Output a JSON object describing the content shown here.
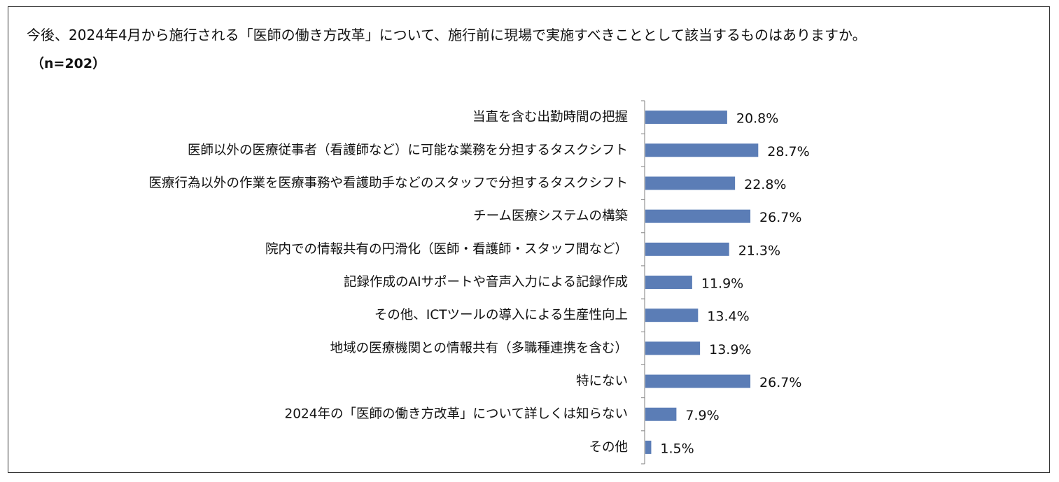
{
  "title": "今後、2024年4月から施行される「医師の働き方改革」について、施行前に現場で実施すべきこととして該当するものはありますか。",
  "subtitle": "（n=202）",
  "colors": {
    "bar": "#5B7DB6",
    "axis": "#7f7f7f",
    "border": "#333333"
  },
  "chart_data": {
    "type": "bar",
    "orientation": "horizontal",
    "categories": [
      "当直を含む出勤時間の把握",
      "医師以外の医療従事者（看護師など）に可能な業務を分担するタスクシフト",
      "医療行為以外の作業を医療事務や看護助手などのスタッフで分担するタスクシフト",
      "チーム医療システムの構築",
      "院内での情報共有の円滑化（医師・看護師・スタッフ間など）",
      "記録作成のAIサポートや音声入力による記録作成",
      "その他、ICTツールの導入による生産性向上",
      "地域の医療機関との情報共有（多職種連携を含む）",
      "特にない",
      "2024年の「医師の働き方改革」について詳しくは知らない",
      "その他"
    ],
    "values": [
      20.8,
      28.7,
      22.8,
      26.7,
      21.3,
      11.9,
      13.4,
      13.9,
      26.7,
      7.9,
      1.5
    ],
    "value_labels": [
      "20.8%",
      "28.7%",
      "22.8%",
      "26.7%",
      "21.3%",
      "11.9%",
      "13.4%",
      "13.9%",
      "26.7%",
      "7.9%",
      "1.5%"
    ],
    "unit": "%",
    "xlim": [
      0,
      100
    ],
    "grid": false,
    "legend": "none"
  }
}
